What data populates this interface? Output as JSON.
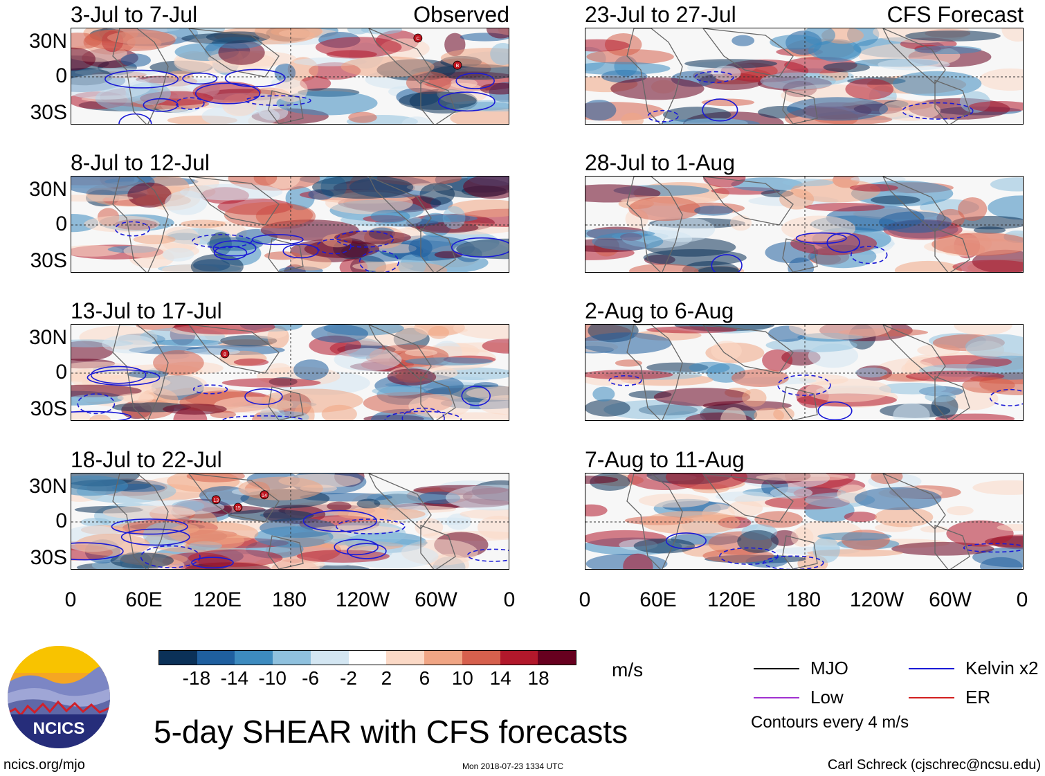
{
  "panels_left": [
    {
      "title": "3-Jul to 7-Jul",
      "label": "Observed",
      "storms": [
        "C",
        "B"
      ]
    },
    {
      "title": "8-Jul to 12-Jul",
      "label": "",
      "storms": []
    },
    {
      "title": "13-Jul to 17-Jul",
      "label": "",
      "storms": [
        "8"
      ]
    },
    {
      "title": "18-Jul to 22-Jul",
      "label": "",
      "storms": [
        "13",
        "15",
        "14"
      ]
    }
  ],
  "panels_right": [
    {
      "title": "23-Jul to 27-Jul",
      "label": "CFS Forecast"
    },
    {
      "title": "28-Jul to 1-Aug",
      "label": ""
    },
    {
      "title": "2-Aug to 6-Aug",
      "label": ""
    },
    {
      "title": "7-Aug to 11-Aug",
      "label": ""
    }
  ],
  "lat_labels": [
    "30N",
    "0",
    "30S"
  ],
  "lon_labels": [
    "0",
    "60E",
    "120E",
    "180",
    "120W",
    "60W",
    "0"
  ],
  "colorbar": {
    "colors": [
      "#0b3158",
      "#1f5f9f",
      "#3d8bbf",
      "#8fc1de",
      "#d3e6f2",
      "#ffffff",
      "#fbd9c6",
      "#f0a584",
      "#d6604d",
      "#b2182b",
      "#67001f"
    ],
    "labels": [
      "-18",
      "-14",
      "-10",
      "-6",
      "-2",
      "2",
      "6",
      "10",
      "14",
      "18"
    ]
  },
  "units": "m/s",
  "legend": [
    {
      "label": "MJO",
      "color": "#000000"
    },
    {
      "label": "Kelvin x2",
      "color": "#1a1ad6"
    },
    {
      "label": "Low",
      "color": "#a030d0"
    },
    {
      "label": "ER",
      "color": "#d21f1f"
    }
  ],
  "contour_note": "Contours every 4 m/s",
  "main_title": "5-day SHEAR with CFS forecasts",
  "logo_text": "NCICS",
  "url": "ncics.org/mjo",
  "timestamp": "Mon 2018-07-23 1334 UTC",
  "credit": "Carl Schreck (cjschrec@ncsu.edu)"
}
